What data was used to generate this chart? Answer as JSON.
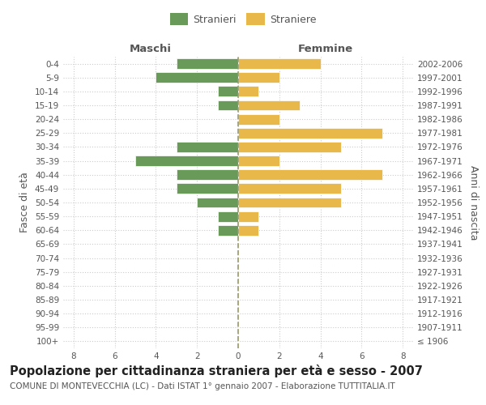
{
  "age_groups": [
    "100+",
    "95-99",
    "90-94",
    "85-89",
    "80-84",
    "75-79",
    "70-74",
    "65-69",
    "60-64",
    "55-59",
    "50-54",
    "45-49",
    "40-44",
    "35-39",
    "30-34",
    "25-29",
    "20-24",
    "15-19",
    "10-14",
    "5-9",
    "0-4"
  ],
  "birth_years": [
    "≤ 1906",
    "1907-1911",
    "1912-1916",
    "1917-1921",
    "1922-1926",
    "1927-1931",
    "1932-1936",
    "1937-1941",
    "1942-1946",
    "1947-1951",
    "1952-1956",
    "1957-1961",
    "1962-1966",
    "1967-1971",
    "1972-1976",
    "1977-1981",
    "1982-1986",
    "1987-1991",
    "1992-1996",
    "1997-2001",
    "2002-2006"
  ],
  "maschi": [
    0,
    0,
    0,
    0,
    0,
    0,
    0,
    0,
    1,
    1,
    2,
    3,
    3,
    5,
    3,
    0,
    0,
    1,
    1,
    4,
    3
  ],
  "femmine": [
    0,
    0,
    0,
    0,
    0,
    0,
    0,
    0,
    1,
    1,
    5,
    5,
    7,
    2,
    5,
    7,
    2,
    3,
    1,
    2,
    4
  ],
  "maschi_color": "#6a9a5a",
  "femmine_color": "#e8b84b",
  "bar_edge_color": "#ffffff",
  "grid_color": "#cccccc",
  "center_line_color": "#999966",
  "background_color": "#ffffff",
  "title": "Popolazione per cittadinanza straniera per età e sesso - 2007",
  "subtitle": "COMUNE DI MONTEVECCHIA (LC) - Dati ISTAT 1° gennaio 2007 - Elaborazione TUTTITALIA.IT",
  "xlabel_left": "Maschi",
  "xlabel_right": "Femmine",
  "ylabel_left": "Fasce di età",
  "ylabel_right": "Anni di nascita",
  "legend_maschi": "Stranieri",
  "legend_femmine": "Straniere",
  "xlim": 8.5,
  "title_fontsize": 10.5,
  "subtitle_fontsize": 7.5,
  "tick_fontsize": 7.5,
  "label_fontsize": 9,
  "header_fontsize": 9.5
}
